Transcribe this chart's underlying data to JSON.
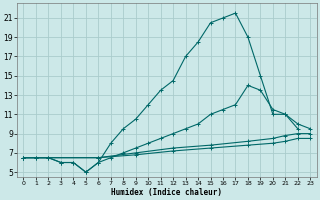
{
  "title": "",
  "xlabel": "Humidex (Indice chaleur)",
  "ylabel": "",
  "bg_color": "#cce8e8",
  "grid_color": "#aacccc",
  "line_color": "#006868",
  "xlim": [
    -0.5,
    23.5
  ],
  "ylim": [
    4.5,
    22.5
  ],
  "xticks": [
    0,
    1,
    2,
    3,
    4,
    5,
    6,
    7,
    8,
    9,
    10,
    11,
    12,
    13,
    14,
    15,
    16,
    17,
    18,
    19,
    20,
    21,
    22,
    23
  ],
  "yticks": [
    5,
    7,
    9,
    11,
    13,
    15,
    17,
    19,
    21
  ],
  "series": [
    {
      "x": [
        0,
        1,
        2,
        3,
        4,
        5,
        6,
        7,
        8,
        9,
        10,
        11,
        12,
        13,
        14,
        15,
        16,
        17,
        18,
        19,
        20,
        21,
        22,
        23
      ],
      "y": [
        6.5,
        6.5,
        6.5,
        6.0,
        6.0,
        5.0,
        6.0,
        8.0,
        9.5,
        10.5,
        12.0,
        13.5,
        14.5,
        17.0,
        18.5,
        20.5,
        21.0,
        21.5,
        19.0,
        15.0,
        11.0,
        11.0,
        9.5,
        null
      ]
    },
    {
      "x": [
        0,
        1,
        2,
        3,
        4,
        5,
        6,
        7,
        8,
        9,
        10,
        11,
        12,
        13,
        14,
        15,
        16,
        17,
        18,
        19,
        20,
        21,
        22,
        23
      ],
      "y": [
        6.5,
        6.5,
        6.5,
        6.0,
        6.0,
        5.0,
        6.0,
        6.5,
        7.0,
        7.5,
        8.0,
        8.5,
        9.0,
        9.5,
        10.0,
        11.0,
        11.5,
        12.0,
        14.0,
        13.5,
        11.5,
        11.0,
        10.0,
        9.5
      ]
    },
    {
      "x": [
        0,
        6,
        9,
        12,
        15,
        18,
        20,
        21,
        22,
        23
      ],
      "y": [
        6.5,
        6.5,
        7.0,
        7.5,
        7.8,
        8.2,
        8.5,
        8.8,
        9.0,
        9.0
      ]
    },
    {
      "x": [
        0,
        6,
        9,
        12,
        15,
        18,
        20,
        21,
        22,
        23
      ],
      "y": [
        6.5,
        6.5,
        6.8,
        7.2,
        7.5,
        7.8,
        8.0,
        8.2,
        8.5,
        8.5
      ]
    }
  ]
}
